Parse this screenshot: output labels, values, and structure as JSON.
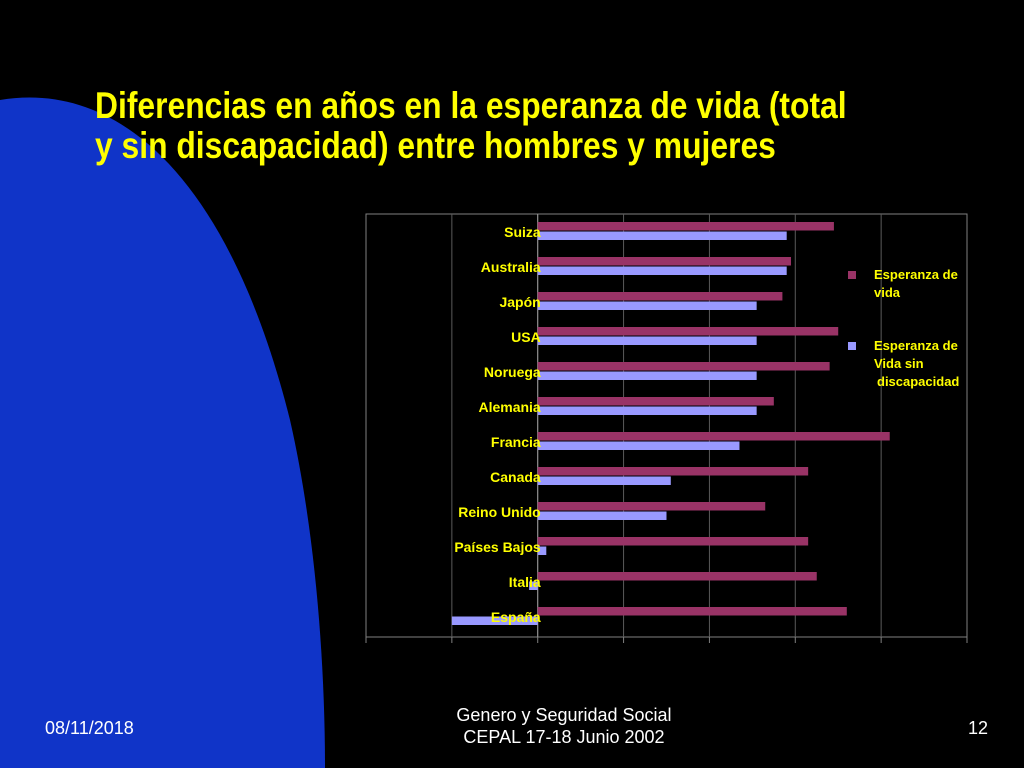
{
  "slide": {
    "title_line1": "Diferencias en años en la esperanza de vida (total",
    "title_line2": "y  sin discapacidad) entre hombres y mujeres",
    "footer_date": "08/11/2018",
    "footer_center_line1": "Genero y Seguridad Social",
    "footer_center_line2": "CEPAL 17-18 Junio 2002",
    "page_number": "12",
    "colors": {
      "background": "#000000",
      "arc": "#1034c8",
      "title": "#ffff00",
      "footer": "#ffffff"
    }
  },
  "chart_data": {
    "type": "bar",
    "orientation": "horizontal",
    "categories": [
      "Suiza",
      "Australia",
      "Japón",
      "USA",
      "Noruega",
      "Alemania",
      "Francia",
      "Canada",
      "Reino Unido",
      "Países Bajos",
      "Italia",
      "España"
    ],
    "series": [
      {
        "name": "Esperanza de vida",
        "color": "#993366",
        "values": [
          6.9,
          5.9,
          5.7,
          7.0,
          6.8,
          5.5,
          8.2,
          6.3,
          5.3,
          6.3,
          6.5,
          7.2
        ]
      },
      {
        "name": "Esperanza de Vida sin discapacidad",
        "color": "#9999ff",
        "values": [
          5.8,
          5.8,
          5.1,
          5.1,
          5.1,
          5.1,
          4.7,
          3.1,
          3.0,
          0.2,
          -0.2,
          -2.0
        ]
      }
    ],
    "xlim": [
      -4,
      10
    ],
    "grid": true,
    "legend_position": "right",
    "legend_lines": [
      [
        "Esperanza de",
        "vida"
      ],
      [
        "Esperanza de",
        "Vida sin",
        "discapacidad"
      ]
    ],
    "xlabel": "",
    "ylabel": "",
    "title": ""
  }
}
